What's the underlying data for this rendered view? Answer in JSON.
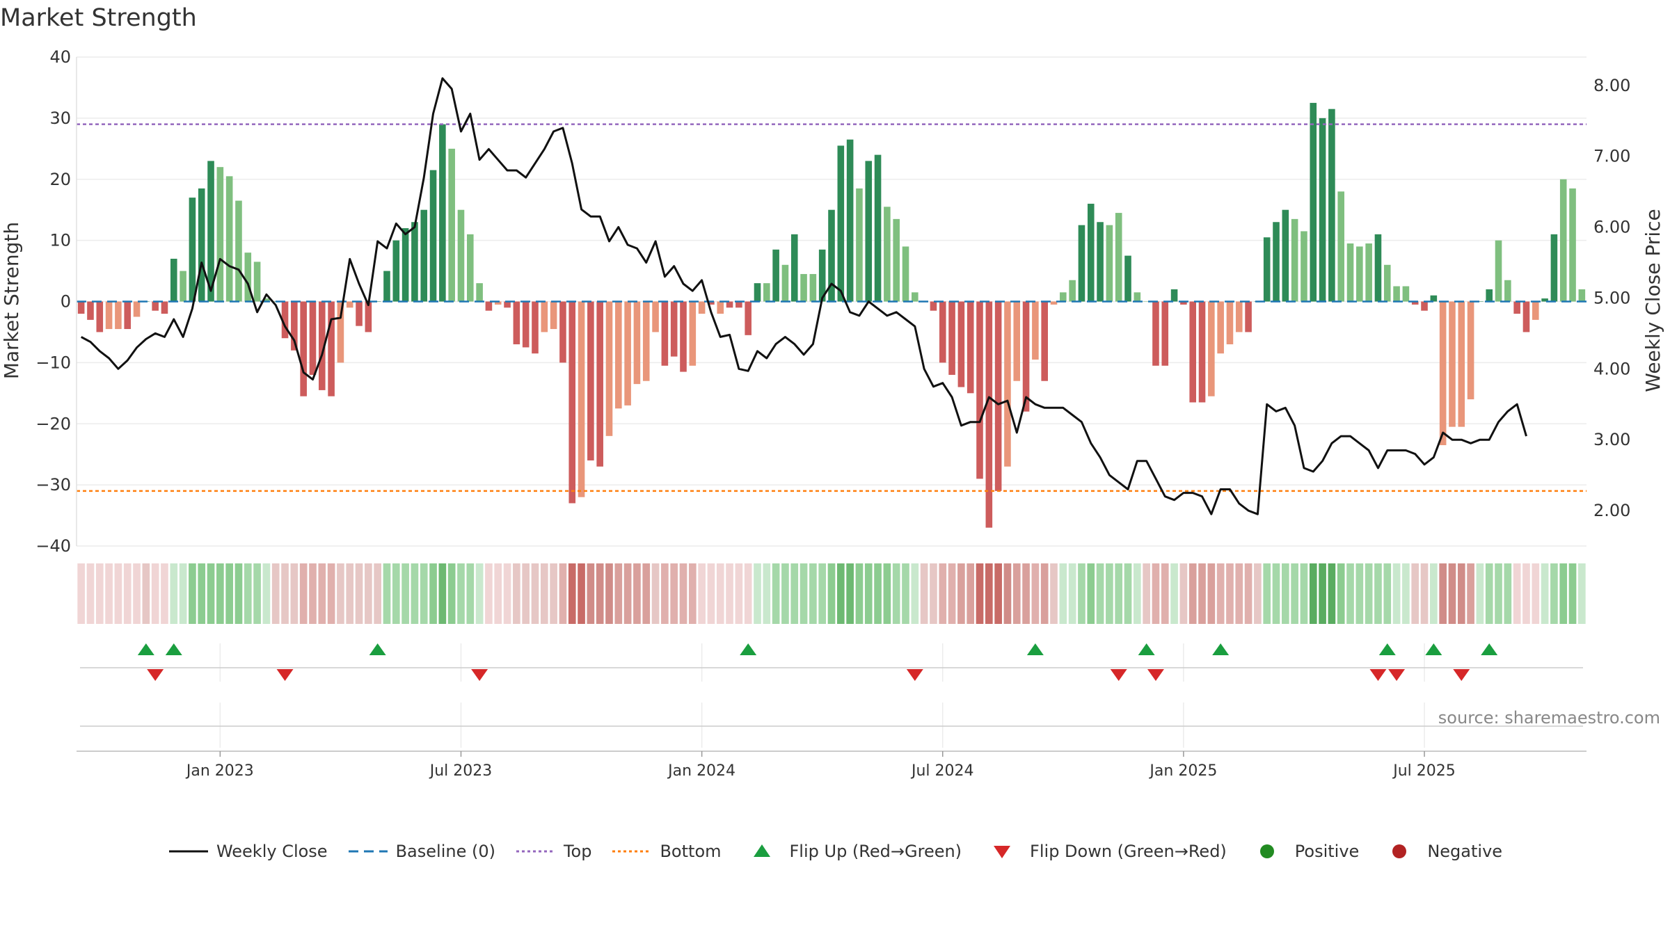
{
  "title": "Market Strength",
  "source": "source: sharemaestro.com",
  "colors": {
    "pos_dark": "#2e8b57",
    "pos_light": "#7fbf7f",
    "neg_dark": "#cd5c5c",
    "neg_light": "#e9967a",
    "line": "#111111",
    "baseline": "#1f77b4",
    "top": "#9467bd",
    "bottom": "#ff7f0e",
    "flip_up": "#1a9e3f",
    "flip_down": "#d62728",
    "positive": "#228b22",
    "negative": "#b22222"
  },
  "legend": [
    {
      "label": "Weekly Close",
      "symbol": "line"
    },
    {
      "label": "Baseline (0)",
      "symbol": "dashed"
    },
    {
      "label": "Top",
      "symbol": "dotted-top"
    },
    {
      "label": "Bottom",
      "symbol": "dotted-bottom"
    },
    {
      "label": "Flip Up (Red→Green)",
      "symbol": "tri-up"
    },
    {
      "label": "Flip Down (Green→Red)",
      "symbol": "tri-down"
    },
    {
      "label": "Positive",
      "symbol": "dot-pos"
    },
    {
      "label": "Negative",
      "symbol": "dot-neg"
    }
  ],
  "chart_data": {
    "type": "bar",
    "title": "Market Strength",
    "ylabel": "Market Strength",
    "y2label": "Weekly Close Price",
    "ylim": [
      -40,
      40
    ],
    "y2lim": [
      1.5,
      8.4
    ],
    "yticks": [
      40,
      30,
      20,
      10,
      0,
      -10,
      -20,
      -30,
      -40
    ],
    "yticklabels": [
      "40",
      "30",
      "20",
      "10",
      "0",
      "−10",
      "−20",
      "−30",
      "−40"
    ],
    "y2ticks": [
      8,
      7,
      6,
      5,
      4,
      3,
      2
    ],
    "y2ticklabels": [
      "8.00",
      "7.00",
      "6.00",
      "5.00",
      "4.00",
      "3.00",
      "2.00"
    ],
    "xticks": [
      15,
      41,
      67,
      93,
      119,
      145
    ],
    "xticklabels": [
      "Jan 2023",
      "Jul 2023",
      "Jan 2024",
      "Jul 2024",
      "Jan 2025",
      "Jul 2025"
    ],
    "top_line": 29,
    "bottom_line": -31,
    "baseline": 0,
    "strength": [
      -2,
      -3,
      -5,
      -4.5,
      -4.5,
      -4.5,
      -2.5,
      0,
      -1.5,
      -2,
      7,
      5,
      17,
      18.5,
      23,
      22,
      20.5,
      16.5,
      8,
      6.5,
      0.5,
      0,
      -6,
      -8,
      -15.5,
      -12,
      -14.5,
      -15.5,
      -10,
      -1,
      -4,
      -5,
      0,
      5,
      10,
      12,
      13,
      15,
      21.5,
      29,
      25,
      15,
      11,
      3,
      -1.5,
      -0.5,
      -1,
      -7,
      -7.5,
      -8.5,
      -5,
      -4.5,
      -10,
      -33,
      -32,
      -26,
      -27,
      -22,
      -17.5,
      -17,
      -13.5,
      -13,
      -5,
      -10.5,
      -9,
      -11.5,
      -10.5,
      -2,
      -0.5,
      -2,
      -1,
      -1,
      -5.5,
      3,
      3,
      8.5,
      6,
      11,
      4.5,
      4.5,
      8.5,
      15,
      25.5,
      26.5,
      18.5,
      23,
      24,
      15.5,
      13.5,
      9,
      1.5,
      0,
      -1.5,
      -10,
      -12,
      -14,
      -15,
      -29,
      -37,
      -31,
      -27,
      -13,
      -18,
      -9.5,
      -13,
      -0.5,
      1.5,
      3.5,
      12.5,
      16,
      13,
      12.5,
      14.5,
      7.5,
      1.5,
      0,
      -10.5,
      -10.5,
      2,
      -0.5,
      -16.5,
      -16.5,
      -15.5,
      -8.5,
      -7,
      -5,
      -5,
      0,
      10.5,
      13,
      15,
      13.5,
      11.5,
      32.5,
      30,
      31.5,
      18,
      9.5,
      9,
      9.5,
      11,
      6,
      2.5,
      2.5,
      -0.5,
      -1.5,
      1,
      -23.5,
      -20.5,
      -20.5,
      -16,
      0,
      2,
      10,
      3.5,
      -2,
      -5,
      -3,
      0.5,
      11,
      20,
      18.5,
      2
    ],
    "bar_shade": [
      "d",
      "d",
      "d",
      "l",
      "l",
      "d",
      "l",
      "d",
      "d",
      "d",
      "d",
      "l",
      "d",
      "d",
      "d",
      "l",
      "l",
      "l",
      "l",
      "l",
      "l",
      "d",
      "d",
      "d",
      "d",
      "d",
      "d",
      "d",
      "l",
      "l",
      "d",
      "d",
      "d",
      "d",
      "d",
      "d",
      "d",
      "d",
      "d",
      "d",
      "l",
      "l",
      "l",
      "l",
      "d",
      "l",
      "d",
      "d",
      "d",
      "d",
      "l",
      "l",
      "d",
      "d",
      "l",
      "d",
      "d",
      "l",
      "l",
      "l",
      "l",
      "l",
      "l",
      "d",
      "d",
      "d",
      "l",
      "l",
      "d",
      "l",
      "d",
      "d",
      "d",
      "d",
      "l",
      "d",
      "l",
      "d",
      "l",
      "l",
      "d",
      "d",
      "d",
      "d",
      "l",
      "d",
      "d",
      "l",
      "l",
      "l",
      "l",
      "d",
      "d",
      "d",
      "d",
      "d",
      "d",
      "d",
      "d",
      "d",
      "l",
      "l",
      "d",
      "l",
      "d",
      "l",
      "l",
      "l",
      "d",
      "d",
      "d",
      "l",
      "l",
      "d",
      "l",
      "l",
      "d",
      "d",
      "d",
      "d",
      "d",
      "d",
      "l",
      "l",
      "l",
      "l",
      "d",
      "d",
      "d",
      "d",
      "d",
      "l",
      "l",
      "d",
      "d",
      "d",
      "l",
      "l",
      "l",
      "l",
      "d",
      "l",
      "l",
      "l",
      "d",
      "d",
      "d",
      "l",
      "l",
      "l",
      "l",
      "d",
      "d",
      "l",
      "l",
      "d",
      "d",
      "l",
      "d",
      "d",
      "l",
      "l"
    ],
    "weekly_close": [
      4.45,
      4.38,
      4.25,
      4.15,
      4.0,
      4.12,
      4.3,
      4.42,
      4.5,
      4.45,
      4.7,
      4.45,
      4.85,
      5.5,
      5.1,
      5.55,
      5.45,
      5.4,
      5.2,
      4.8,
      5.05,
      4.9,
      4.6,
      4.4,
      3.95,
      3.85,
      4.2,
      4.7,
      4.72,
      5.55,
      5.2,
      4.9,
      5.8,
      5.7,
      6.05,
      5.9,
      6.0,
      6.7,
      7.6,
      8.1,
      7.95,
      7.35,
      7.6,
      6.95,
      7.1,
      6.95,
      6.8,
      6.8,
      6.7,
      6.9,
      7.1,
      7.35,
      7.4,
      6.9,
      6.25,
      6.15,
      6.15,
      5.8,
      6.0,
      5.75,
      5.7,
      5.5,
      5.8,
      5.3,
      5.45,
      5.2,
      5.1,
      5.25,
      4.8,
      4.45,
      4.48,
      4.0,
      3.97,
      4.25,
      4.15,
      4.35,
      4.45,
      4.35,
      4.2,
      4.35,
      5.0,
      5.2,
      5.1,
      4.8,
      4.75,
      4.95,
      4.85,
      4.75,
      4.8,
      4.7,
      4.6,
      4.0,
      3.75,
      3.8,
      3.6,
      3.2,
      3.25,
      3.25,
      3.6,
      3.5,
      3.55,
      3.1,
      3.6,
      3.5,
      3.45,
      3.45,
      3.45,
      3.35,
      3.25,
      2.95,
      2.75,
      2.5,
      2.4,
      2.3,
      2.7,
      2.7,
      2.45,
      2.2,
      2.15,
      2.25,
      2.25,
      2.2,
      1.95,
      2.3,
      2.3,
      2.1,
      2.0,
      1.95,
      3.5,
      3.4,
      3.45,
      3.2,
      2.6,
      2.55,
      2.7,
      2.95,
      3.05,
      3.05,
      2.95,
      2.85,
      2.6,
      2.85,
      2.85,
      2.85,
      2.8,
      2.65,
      2.75,
      3.1,
      3.0,
      3.0,
      2.95,
      3.0,
      3.0,
      3.25,
      3.4,
      3.5,
      3.05
    ],
    "heat_color": [
      "#f0d5d5",
      "#f0d5d5",
      "#f0d5d5",
      "#f0d5d5",
      "#f0d5d5",
      "#f0d5d5",
      "#f0d5d5",
      "#e6c7c5",
      "#f0d5d5",
      "#f0d5d5",
      "#c9e8cd",
      "#c9e8cd",
      "#8ccc90",
      "#8ccc90",
      "#8ccc90",
      "#8ccc90",
      "#8ccc90",
      "#8ccc90",
      "#a5d8a9",
      "#a5d8a9",
      "#c9e8cd",
      "#e6c7c5",
      "#e6c7c5",
      "#e6c7c5",
      "#e0b0ad",
      "#e0b0ad",
      "#e0b0ad",
      "#e0b0ad",
      "#e6c7c5",
      "#e6c7c5",
      "#e6c7c5",
      "#e6c7c5",
      "#e6c7c5",
      "#a5d8a9",
      "#a5d8a9",
      "#a5d8a9",
      "#a5d8a9",
      "#a5d8a9",
      "#8ccc90",
      "#6db972",
      "#8ccc90",
      "#a5d8a9",
      "#a5d8a9",
      "#c9e8cd",
      "#f0d5d5",
      "#f0d5d5",
      "#f0d5d5",
      "#e6c7c5",
      "#e6c7c5",
      "#e6c7c5",
      "#e6c7c5",
      "#e6c7c5",
      "#e0b0ad",
      "#c86b67",
      "#c86b67",
      "#d08c88",
      "#d08c88",
      "#d08c88",
      "#d9a09c",
      "#d9a09c",
      "#d9a09c",
      "#d9a09c",
      "#e6c7c5",
      "#e0b0ad",
      "#e0b0ad",
      "#e0b0ad",
      "#e0b0ad",
      "#f0d5d5",
      "#f0d5d5",
      "#f0d5d5",
      "#f0d5d5",
      "#f0d5d5",
      "#f0d5d5",
      "#c9e8cd",
      "#c9e8cd",
      "#a5d8a9",
      "#a5d8a9",
      "#a5d8a9",
      "#a5d8a9",
      "#a5d8a9",
      "#a5d8a9",
      "#8ccc90",
      "#6db972",
      "#6db972",
      "#8ccc90",
      "#8ccc90",
      "#8ccc90",
      "#8ccc90",
      "#a5d8a9",
      "#a5d8a9",
      "#c9e8cd",
      "#e6c7c5",
      "#e6c7c5",
      "#e0b0ad",
      "#e0b0ad",
      "#d9a09c",
      "#d9a09c",
      "#c86b67",
      "#c86b67",
      "#c86b67",
      "#d08c88",
      "#d9a09c",
      "#d9a09c",
      "#e0b0ad",
      "#d9a09c",
      "#e6c7c5",
      "#c9e8cd",
      "#c9e8cd",
      "#a5d8a9",
      "#8ccc90",
      "#a5d8a9",
      "#a5d8a9",
      "#a5d8a9",
      "#a5d8a9",
      "#c9e8cd",
      "#e6c7c5",
      "#e0b0ad",
      "#e0b0ad",
      "#c9e8cd",
      "#e6c7c5",
      "#d9a09c",
      "#d9a09c",
      "#d9a09c",
      "#e0b0ad",
      "#e0b0ad",
      "#e0b0ad",
      "#e0b0ad",
      "#e6c7c5",
      "#a5d8a9",
      "#a5d8a9",
      "#a5d8a9",
      "#a5d8a9",
      "#a5d8a9",
      "#5aac60",
      "#5aac60",
      "#5aac60",
      "#8ccc90",
      "#a5d8a9",
      "#a5d8a9",
      "#a5d8a9",
      "#a5d8a9",
      "#a5d8a9",
      "#c9e8cd",
      "#c9e8cd",
      "#e6c7c5",
      "#e6c7c5",
      "#c9e8cd",
      "#d08c88",
      "#d08c88",
      "#d08c88",
      "#d9a09c",
      "#c9e8cd",
      "#a5d8a9",
      "#a5d8a9",
      "#a5d8a9",
      "#f0d5d5",
      "#f0d5d5",
      "#f0d5d5",
      "#c9e8cd",
      "#a5d8a9",
      "#8ccc90",
      "#8ccc90",
      "#c9e8cd"
    ],
    "flip_up": [
      7,
      10,
      32,
      72,
      103,
      115,
      123,
      141,
      146,
      152
    ],
    "flip_down": [
      8,
      22,
      43,
      90,
      112,
      116,
      140,
      142,
      149
    ],
    "ribbon_dividers": [
      15,
      41,
      67,
      93,
      119,
      145
    ]
  }
}
